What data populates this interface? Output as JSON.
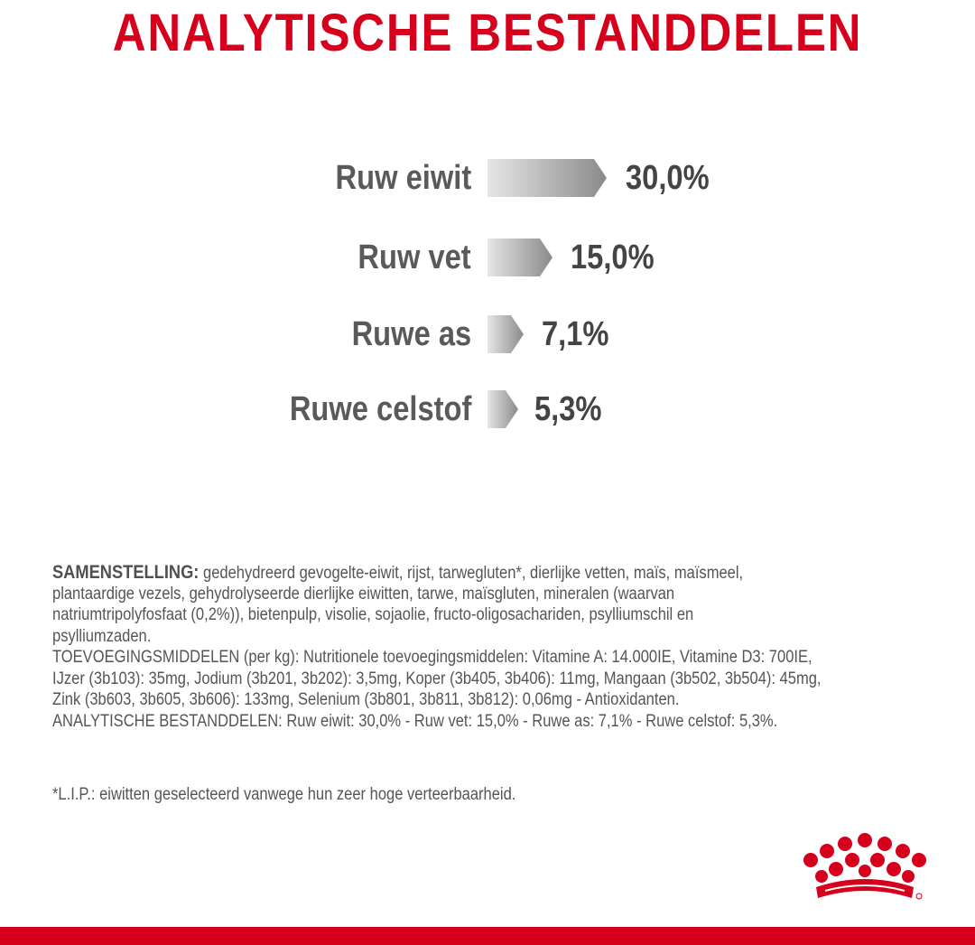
{
  "title": "ANALYTISCHE BESTANDDELEN",
  "nutrients": [
    {
      "label": "Ruw eiwit",
      "value": "30,0%",
      "percent": 30.0
    },
    {
      "label": "Ruw vet",
      "value": "15,0%",
      "percent": 15.0
    },
    {
      "label": "Ruwe as",
      "value": "7,1%",
      "percent": 7.1
    },
    {
      "label": "Ruwe celstof",
      "value": "5,3%",
      "percent": 5.3
    }
  ],
  "composition": {
    "heading": "SAMENSTELLING:",
    "line1": " gedehydreerd gevogelte-eiwit, rijst, tarwegluten*, dierlijke vetten, maïs, maïsmeel,",
    "line2": "plantaardige vezels, gehydrolyseerde dierlijke eiwitten, tarwe, maïsgluten, mineralen (waarvan",
    "line3": "natriumtripolyfosfaat (0,2%)), bietenpulp, visolie, sojaolie, fructo-oligosachariden, psylliumschil en",
    "line4": "psylliumzaden.",
    "line5": "TOEVOEGINGSMIDDELEN (per kg): Nutritionele toevoegingsmiddelen: Vitamine A: 14.000IE, Vitamine D3: 700IE,",
    "line6": "IJzer (3b103): 35mg, Jodium (3b201, 3b202): 3,5mg, Koper (3b405, 3b406): 11mg, Mangaan (3b502, 3b504): 45mg,",
    "line7": "Zink (3b603, 3b605, 3b606): 133mg, Selenium (3b801, 3b811, 3b812): 0,06mg - Antioxidanten.",
    "line8": "ANALYTISCHE BESTANDDELEN: Ruw eiwit: 30,0% - Ruw vet: 15,0% - Ruwe as: 7,1% - Ruwe celstof: 5,3%."
  },
  "footnote": "*L.I.P.: eiwitten geselecteerd vanwege hun zeer hoge verteerbaarheid.",
  "colors": {
    "brand_red": "#d6001c",
    "arrow_light": "#e3e3e3",
    "arrow_dark": "#8c8c8c",
    "text_gray": "#5a5a5a"
  }
}
